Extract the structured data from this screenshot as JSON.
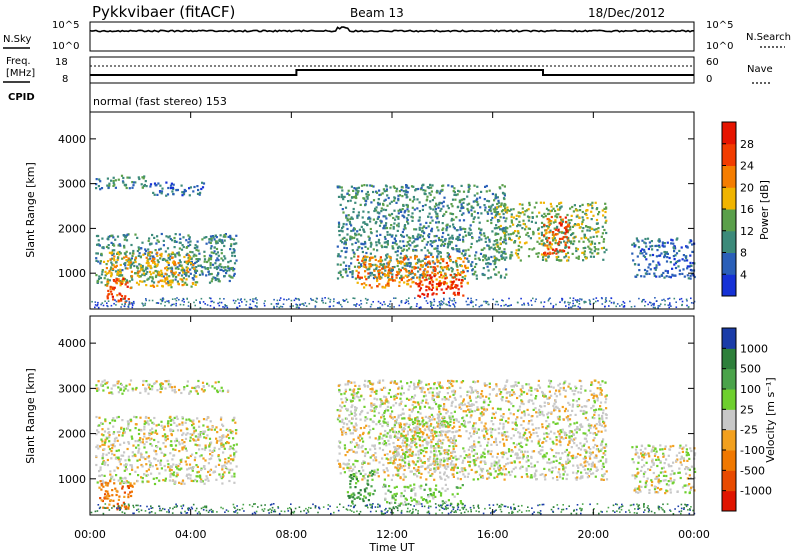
{
  "header": {
    "station": "Pykkvibaer (fitACF)",
    "beam": "Beam 13",
    "date": "18/Dec/2012"
  },
  "panel_labels": {
    "nsky": "N.Sky",
    "nsearch": "N.Search",
    "freq_line1": "Freq.",
    "freq_line2": "[MHz]",
    "nave": "Nave",
    "cpid": "CPID",
    "cpid_text": "normal (fast stereo) 153"
  },
  "noise_ticks": {
    "left": [
      "10^5",
      "10^0"
    ],
    "right": [
      "10^5",
      "10^0"
    ]
  },
  "freq_ticks": {
    "left": [
      "18",
      "8"
    ],
    "right": [
      "60",
      "0"
    ]
  },
  "x_axis": {
    "label": "Time UT",
    "ticks": [
      "00:00",
      "04:00",
      "08:00",
      "12:00",
      "16:00",
      "20:00",
      "00:00"
    ],
    "tick_hours": [
      0,
      4,
      8,
      12,
      16,
      20,
      24
    ],
    "range": [
      0,
      24
    ]
  },
  "power_panel": {
    "ylabel": "Slant Range [km]",
    "yticks": [
      1000,
      2000,
      3000,
      4000
    ],
    "ylim": [
      200,
      4600
    ],
    "colorbar_label": "Power [dB]",
    "colorbar_ticks": [
      "28",
      "24",
      "20",
      "16",
      "12",
      "8",
      "4"
    ],
    "colors": [
      "#1632d6",
      "#2a5fb8",
      "#3c8a7a",
      "#5a9f4a",
      "#f0b400",
      "#f57d00",
      "#f23c00",
      "#e61400"
    ]
  },
  "velocity_panel": {
    "ylabel": "Slant Range [km]",
    "yticks": [
      1000,
      2000,
      3000,
      4000
    ],
    "ylim": [
      200,
      4600
    ],
    "colorbar_label": "Velocity [m s⁻¹]",
    "colorbar_ticks": [
      "1000",
      "500",
      "100",
      "25",
      "-25",
      "-100",
      "-500",
      "-1000"
    ],
    "colors": [
      "#1a3ca8",
      "#2d7f3a",
      "#4aa34a",
      "#6ecf2e",
      "#c8c8c8",
      "#f2a01e",
      "#f07800",
      "#e84a00",
      "#e01400"
    ]
  },
  "chart_data": {
    "type": "heatmap",
    "x_unit": "hours UT",
    "y_unit": "km",
    "frequency_steps": [
      {
        "from": 0,
        "to": 8.2,
        "value": 10
      },
      {
        "from": 8.2,
        "to": 18,
        "value": 12
      },
      {
        "from": 18,
        "to": 24,
        "value": 10
      }
    ],
    "power_regions": [
      {
        "t0": 0.2,
        "t1": 2.3,
        "r0": 2900,
        "r1": 3200,
        "level": 2
      },
      {
        "t0": 2.3,
        "t1": 4.5,
        "r0": 2750,
        "r1": 3050,
        "level": 1
      },
      {
        "t0": 0.2,
        "t1": 5.8,
        "r0": 800,
        "r1": 1900,
        "level": 2
      },
      {
        "t0": 0.5,
        "t1": 4.2,
        "r0": 700,
        "r1": 1500,
        "level": 4
      },
      {
        "t0": 0.6,
        "t1": 1.6,
        "r0": 350,
        "r1": 900,
        "level": 6
      },
      {
        "t0": 9.8,
        "t1": 16.5,
        "r0": 900,
        "r1": 3000,
        "level": 2
      },
      {
        "t0": 10.5,
        "t1": 15.0,
        "r0": 700,
        "r1": 1400,
        "level": 5
      },
      {
        "t0": 13.0,
        "t1": 14.8,
        "r0": 500,
        "r1": 1000,
        "level": 7
      },
      {
        "t0": 16.0,
        "t1": 20.5,
        "r0": 1300,
        "r1": 2600,
        "level": 3
      },
      {
        "t0": 18.0,
        "t1": 19.0,
        "r0": 1400,
        "r1": 2300,
        "level": 6
      },
      {
        "t0": 21.5,
        "t1": 24.0,
        "r0": 900,
        "r1": 1800,
        "level": 1
      }
    ],
    "velocity_regions": [
      {
        "t0": 0.2,
        "t1": 5.5,
        "r0": 2900,
        "r1": 3200,
        "level": 4
      },
      {
        "t0": 0.2,
        "t1": 5.8,
        "r0": 900,
        "r1": 2400,
        "level": 4
      },
      {
        "t0": 0.3,
        "t1": 1.7,
        "r0": 350,
        "r1": 1000,
        "level": 6
      },
      {
        "t0": 9.8,
        "t1": 20.5,
        "r0": 1000,
        "r1": 3200,
        "level": 4
      },
      {
        "t0": 10.2,
        "t1": 11.3,
        "r0": 500,
        "r1": 1200,
        "level": 2
      },
      {
        "t0": 11.6,
        "t1": 14.8,
        "r0": 450,
        "r1": 900,
        "level": 3
      },
      {
        "t0": 12.0,
        "t1": 14.5,
        "r0": 1200,
        "r1": 2400,
        "level": 4
      },
      {
        "t0": 21.5,
        "t1": 24.0,
        "r0": 700,
        "r1": 1800,
        "level": 4
      }
    ]
  }
}
